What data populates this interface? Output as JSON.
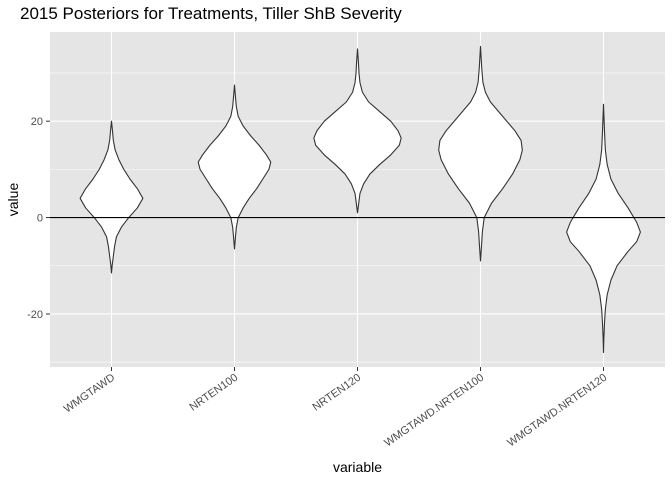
{
  "title": "2015 Posteriors for Treatments, Tiller ShB Severity",
  "chart_data": {
    "type": "violin",
    "title": "2015 Posteriors for Treatments, Tiller ShB Severity",
    "xlabel": "variable",
    "ylabel": "value",
    "ylim": [
      -31,
      38.5
    ],
    "yticks": [
      -20,
      0,
      20
    ],
    "yticklabels": [
      "-20",
      "0",
      "20"
    ],
    "hline": 0,
    "grid": true,
    "categories": [
      "WMGTAWD",
      "NRTEN100",
      "NRTEN120",
      "WMGTAWD.NRTEN100",
      "WMGTAWD.NRTEN120"
    ],
    "series": [
      {
        "category": "WMGTAWD",
        "min": -11.5,
        "max": 20,
        "mode": 4.5,
        "profile": [
          [
            -11.5,
            0.0
          ],
          [
            -10.0,
            0.5
          ],
          [
            -8.0,
            1.5
          ],
          [
            -6.0,
            2.5
          ],
          [
            -4.0,
            4.0
          ],
          [
            -2.0,
            8.0
          ],
          [
            0.0,
            14.0
          ],
          [
            2.0,
            21.0
          ],
          [
            4.0,
            25.5
          ],
          [
            6.0,
            21.0
          ],
          [
            8.0,
            15.0
          ],
          [
            10.0,
            10.0
          ],
          [
            12.0,
            6.0
          ],
          [
            14.0,
            3.0
          ],
          [
            16.0,
            1.5
          ],
          [
            18.0,
            0.8
          ],
          [
            20.0,
            0.0
          ]
        ]
      },
      {
        "category": "NRTEN100",
        "min": -6.5,
        "max": 27.5,
        "mode": 11.5,
        "profile": [
          [
            -6.5,
            0.0
          ],
          [
            -4.0,
            0.8
          ],
          [
            -2.0,
            1.5
          ],
          [
            0.0,
            3.0
          ],
          [
            2.0,
            7.0
          ],
          [
            4.0,
            12.0
          ],
          [
            6.0,
            18.0
          ],
          [
            8.0,
            23.0
          ],
          [
            10.0,
            28.0
          ],
          [
            11.5,
            29.5
          ],
          [
            13.0,
            26.0
          ],
          [
            15.0,
            20.0
          ],
          [
            17.0,
            13.0
          ],
          [
            19.0,
            7.0
          ],
          [
            21.0,
            3.0
          ],
          [
            23.0,
            1.5
          ],
          [
            25.0,
            0.8
          ],
          [
            27.5,
            0.0
          ]
        ]
      },
      {
        "category": "NRTEN120",
        "min": 1,
        "max": 35,
        "mode": 16,
        "profile": [
          [
            1.0,
            0.0
          ],
          [
            3.0,
            1.0
          ],
          [
            5.0,
            2.0
          ],
          [
            7.0,
            5.0
          ],
          [
            9.0,
            10.0
          ],
          [
            11.0,
            18.0
          ],
          [
            13.0,
            27.0
          ],
          [
            15.0,
            34.0
          ],
          [
            16.5,
            35.5
          ],
          [
            18.0,
            33.0
          ],
          [
            20.0,
            27.0
          ],
          [
            22.0,
            18.0
          ],
          [
            24.0,
            9.0
          ],
          [
            26.0,
            4.0
          ],
          [
            28.0,
            2.0
          ],
          [
            30.0,
            1.2
          ],
          [
            32.0,
            0.8
          ],
          [
            35.0,
            0.0
          ]
        ]
      },
      {
        "category": "WMGTAWD.NRTEN100",
        "min": -9,
        "max": 35.5,
        "mode": 14,
        "profile": [
          [
            -9.0,
            0.0
          ],
          [
            -6.0,
            0.8
          ],
          [
            -3.0,
            1.5
          ],
          [
            0.0,
            3.0
          ],
          [
            3.0,
            9.0
          ],
          [
            6.0,
            18.0
          ],
          [
            9.0,
            26.0
          ],
          [
            12.0,
            32.0
          ],
          [
            14.0,
            34.0
          ],
          [
            16.0,
            33.0
          ],
          [
            18.0,
            28.0
          ],
          [
            21.0,
            18.0
          ],
          [
            24.0,
            8.0
          ],
          [
            26.0,
            4.0
          ],
          [
            28.0,
            2.0
          ],
          [
            31.0,
            1.0
          ],
          [
            35.5,
            0.0
          ]
        ]
      },
      {
        "category": "WMGTAWD.NRTEN120",
        "min": -28,
        "max": 23.5,
        "mode": -3,
        "profile": [
          [
            -28.0,
            0.0
          ],
          [
            -25.0,
            0.3
          ],
          [
            -22.0,
            0.8
          ],
          [
            -19.0,
            1.5
          ],
          [
            -16.0,
            3.0
          ],
          [
            -13.0,
            6.0
          ],
          [
            -10.0,
            11.0
          ],
          [
            -7.0,
            20.0
          ],
          [
            -5.0,
            27.0
          ],
          [
            -3.0,
            30.0
          ],
          [
            -1.0,
            27.0
          ],
          [
            2.0,
            20.0
          ],
          [
            5.0,
            12.0
          ],
          [
            8.0,
            6.0
          ],
          [
            11.0,
            3.0
          ],
          [
            14.0,
            1.5
          ],
          [
            18.0,
            0.8
          ],
          [
            23.5,
            0.0
          ]
        ]
      }
    ],
    "colors": {
      "panel_background": "#e5e5e5",
      "grid": "#ffffff",
      "violin_fill": "#ffffff",
      "violin_stroke": "#333333",
      "hline": "#000000"
    }
  }
}
